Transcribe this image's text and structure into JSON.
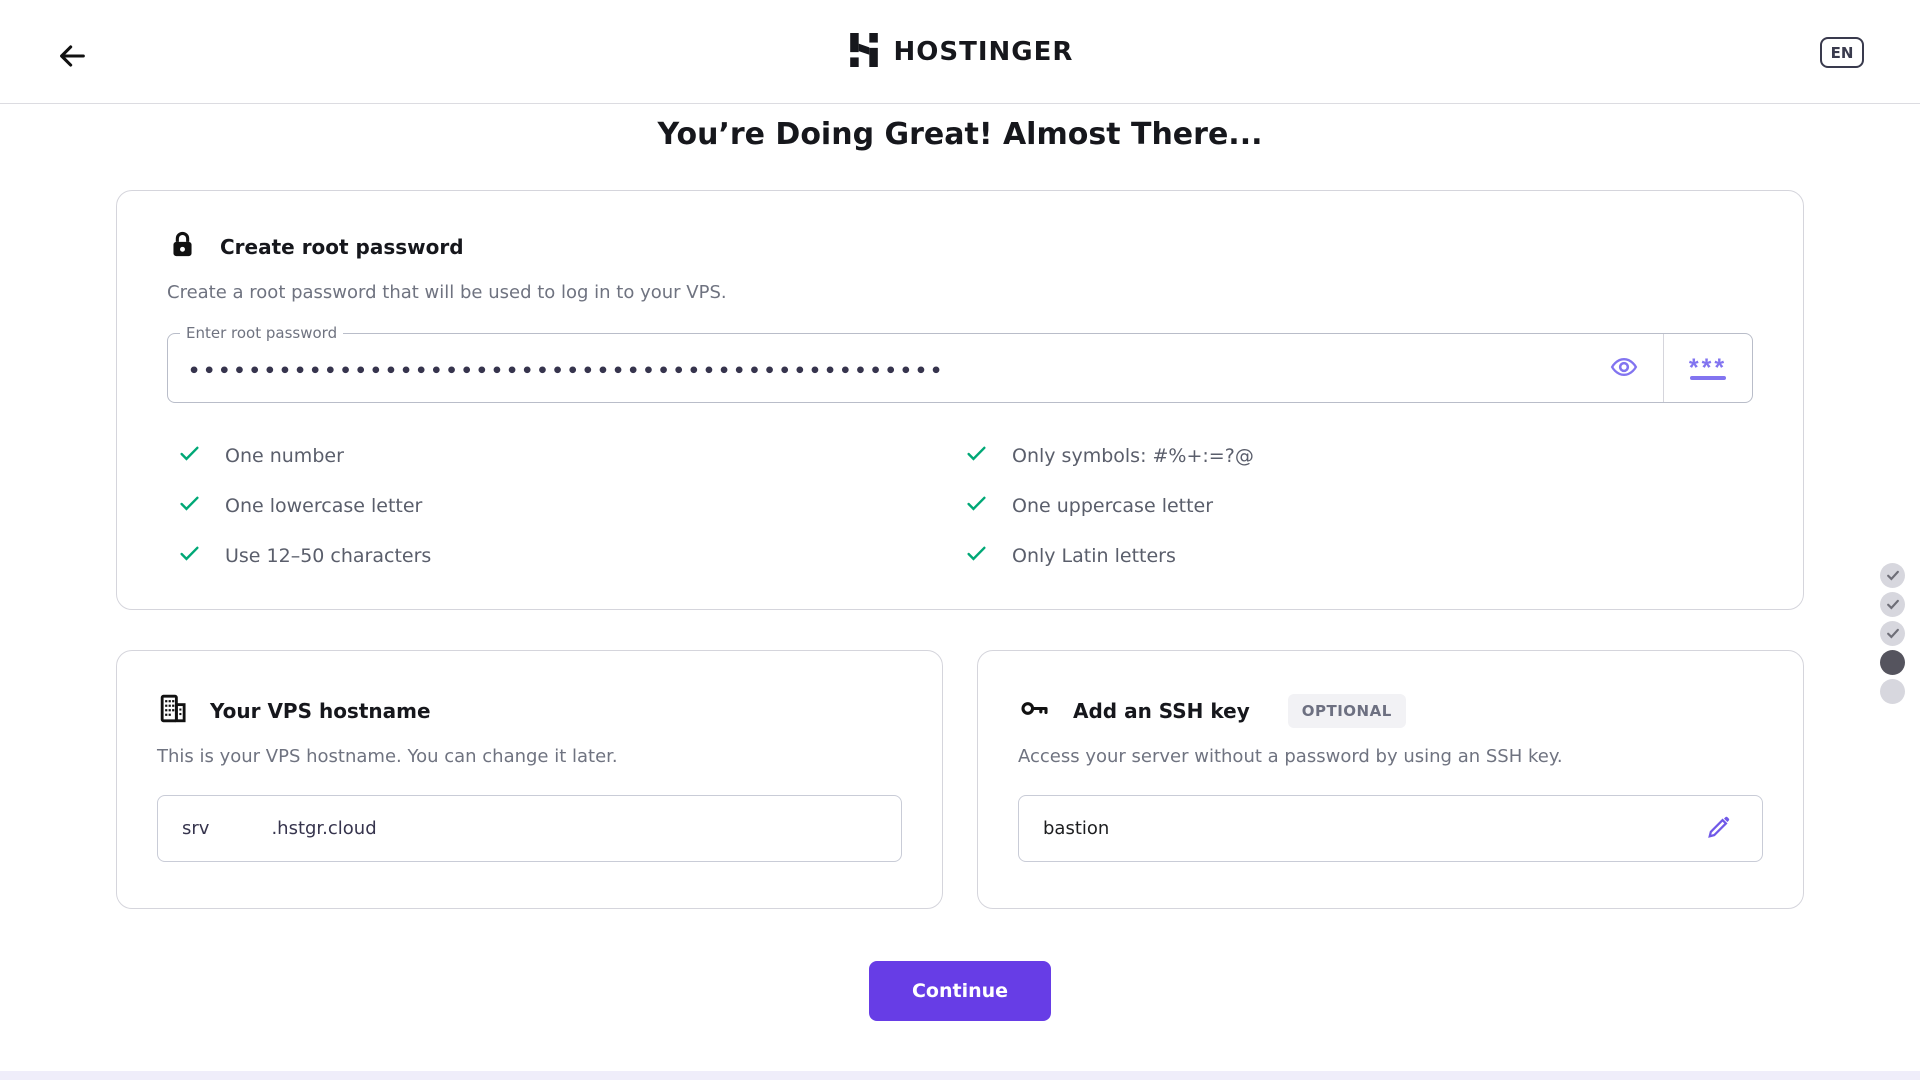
{
  "header": {
    "brand": "HOSTINGER",
    "language": "EN"
  },
  "page": {
    "title": "You’re Doing Great! Almost There...",
    "continue_label": "Continue"
  },
  "password_card": {
    "title": "Create root password",
    "description": "Create a root password that will be used to log in to your VPS.",
    "input_label": "Enter root password",
    "masked_value": "••••••••••••••••••••••••••••••••••••••••••••••••••",
    "generate_stars": "***",
    "requirements_left": [
      "One number",
      "One lowercase letter",
      "Use 12–50 characters"
    ],
    "requirements_right": [
      "Only symbols: #%+:=?@",
      "One uppercase letter",
      "Only Latin letters"
    ]
  },
  "hostname_card": {
    "title": "Your VPS hostname",
    "description": "This is your VPS hostname. You can change it later.",
    "prefix": "srv",
    "middle_value": "",
    "suffix": ".hstgr.cloud"
  },
  "ssh_card": {
    "title": "Add an SSH key",
    "badge": "OPTIONAL",
    "description": "Access your server without a password by using an SSH key.",
    "value": "bastion"
  },
  "stepper": {
    "steps": [
      {
        "state": "complete"
      },
      {
        "state": "complete"
      },
      {
        "state": "complete"
      },
      {
        "state": "current"
      },
      {
        "state": "upcoming"
      }
    ]
  },
  "colors": {
    "brand_purple": "#673de6",
    "accent_purple": "#8274f0",
    "success_green": "#00a876",
    "dark_text": "#16171c",
    "muted_text": "#6f7380"
  }
}
